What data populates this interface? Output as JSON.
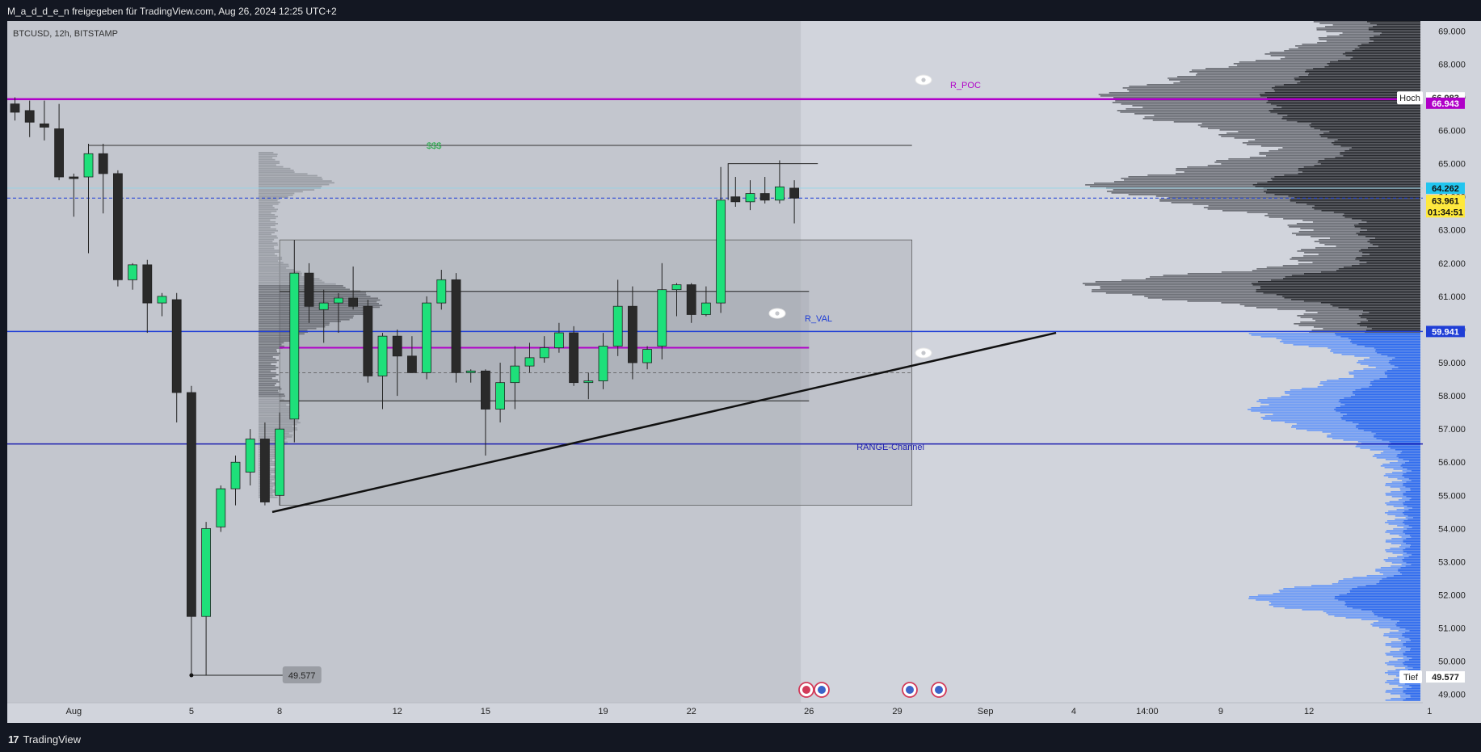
{
  "header": {
    "title": "M_a_d_d_e_n freigegeben für TradingView.com, Aug 26, 2024 12:25 UTC+2"
  },
  "footer": {
    "logo_mark": "17",
    "brand": "TradingView"
  },
  "colors": {
    "up": "#1ee07a",
    "down": "#2a2a2a",
    "poc": "#b000c8",
    "val": "#1f3ed6",
    "cyan": "#22c5ef",
    "yellow": "#ffe93b",
    "vp_upper": "#3a3a3a",
    "vp_lower": "#3a78f5"
  },
  "chart_data": {
    "type": "candlestick",
    "symbol_label": "BTCUSD, 12h, BITSTAMP",
    "ylim": [
      48750,
      69300
    ],
    "y_ticks": [
      "69.000",
      "68.000",
      "67.000",
      "66.000",
      "65.000",
      "64.000",
      "63.000",
      "62.000",
      "61.000",
      "60.000",
      "59.000",
      "58.000",
      "57.000",
      "56.000",
      "55.000",
      "54.000",
      "53.000",
      "52.000",
      "51.000",
      "50.000",
      "49.000"
    ],
    "x_labels": [
      {
        "label": "Aug",
        "idx": 4
      },
      {
        "label": "5",
        "idx": 12
      },
      {
        "label": "8",
        "idx": 18
      },
      {
        "label": "12",
        "idx": 26
      },
      {
        "label": "15",
        "idx": 32
      },
      {
        "label": "19",
        "idx": 40
      },
      {
        "label": "22",
        "idx": 46
      },
      {
        "label": "26",
        "idx": 54
      },
      {
        "label": "29",
        "idx": 60
      },
      {
        "label": "Sep",
        "idx": 66
      },
      {
        "label": "4",
        "idx": 72
      },
      {
        "label": "14:00",
        "idx": 77
      },
      {
        "label": "9",
        "idx": 82
      },
      {
        "label": "12",
        "idx": 88
      },
      {
        "label": "1",
        "idx": 96.2
      }
    ],
    "candles": [
      {
        "o": 66800,
        "h": 67000,
        "l": 66300,
        "c": 66550
      },
      {
        "o": 66600,
        "h": 66900,
        "l": 65800,
        "c": 66250
      },
      {
        "o": 66200,
        "h": 66900,
        "l": 65700,
        "c": 66100
      },
      {
        "o": 66050,
        "h": 66800,
        "l": 64500,
        "c": 64600
      },
      {
        "o": 64600,
        "h": 64700,
        "l": 63400,
        "c": 64550
      },
      {
        "o": 64600,
        "h": 65600,
        "l": 62300,
        "c": 65300
      },
      {
        "o": 65300,
        "h": 65600,
        "l": 63500,
        "c": 64700
      },
      {
        "o": 64700,
        "h": 64800,
        "l": 61300,
        "c": 61500
      },
      {
        "o": 61500,
        "h": 62000,
        "l": 61200,
        "c": 61950
      },
      {
        "o": 61950,
        "h": 62100,
        "l": 59900,
        "c": 60800
      },
      {
        "o": 60800,
        "h": 61100,
        "l": 60400,
        "c": 61000
      },
      {
        "o": 60900,
        "h": 61100,
        "l": 57200,
        "c": 58100
      },
      {
        "o": 58100,
        "h": 58300,
        "l": 49577,
        "c": 51350
      },
      {
        "o": 51350,
        "h": 54200,
        "l": 49577,
        "c": 54000
      },
      {
        "o": 54050,
        "h": 55300,
        "l": 53900,
        "c": 55200
      },
      {
        "o": 55200,
        "h": 56200,
        "l": 54700,
        "c": 56000
      },
      {
        "o": 55700,
        "h": 57000,
        "l": 55300,
        "c": 56700
      },
      {
        "o": 56700,
        "h": 57200,
        "l": 54700,
        "c": 54800
      },
      {
        "o": 55000,
        "h": 57500,
        "l": 54700,
        "c": 57000
      },
      {
        "o": 57300,
        "h": 62700,
        "l": 56600,
        "c": 61700
      },
      {
        "o": 61700,
        "h": 62000,
        "l": 60200,
        "c": 60700
      },
      {
        "o": 60600,
        "h": 61200,
        "l": 59600,
        "c": 60800
      },
      {
        "o": 60800,
        "h": 61100,
        "l": 59900,
        "c": 60950
      },
      {
        "o": 60950,
        "h": 61900,
        "l": 60600,
        "c": 60700
      },
      {
        "o": 60700,
        "h": 60900,
        "l": 58400,
        "c": 58600
      },
      {
        "o": 58600,
        "h": 59900,
        "l": 57600,
        "c": 59800
      },
      {
        "o": 59800,
        "h": 60000,
        "l": 58000,
        "c": 59200
      },
      {
        "o": 59200,
        "h": 59800,
        "l": 58700,
        "c": 58700
      },
      {
        "o": 58700,
        "h": 61000,
        "l": 58500,
        "c": 60800
      },
      {
        "o": 60800,
        "h": 61800,
        "l": 60600,
        "c": 61500
      },
      {
        "o": 61500,
        "h": 61700,
        "l": 58400,
        "c": 58700
      },
      {
        "o": 58700,
        "h": 58800,
        "l": 58400,
        "c": 58750
      },
      {
        "o": 58750,
        "h": 58800,
        "l": 56200,
        "c": 57600
      },
      {
        "o": 57600,
        "h": 59000,
        "l": 57200,
        "c": 58400
      },
      {
        "o": 58400,
        "h": 59500,
        "l": 57600,
        "c": 58900
      },
      {
        "o": 58900,
        "h": 59600,
        "l": 58700,
        "c": 59150
      },
      {
        "o": 59150,
        "h": 59800,
        "l": 59000,
        "c": 59450
      },
      {
        "o": 59450,
        "h": 60200,
        "l": 59300,
        "c": 59900
      },
      {
        "o": 59900,
        "h": 60100,
        "l": 58300,
        "c": 58400
      },
      {
        "o": 58400,
        "h": 58700,
        "l": 57900,
        "c": 58450
      },
      {
        "o": 58450,
        "h": 59900,
        "l": 58200,
        "c": 59500
      },
      {
        "o": 59500,
        "h": 61500,
        "l": 59200,
        "c": 60700
      },
      {
        "o": 60700,
        "h": 61300,
        "l": 58500,
        "c": 59000
      },
      {
        "o": 59000,
        "h": 59500,
        "l": 58800,
        "c": 59400
      },
      {
        "o": 59500,
        "h": 62000,
        "l": 59100,
        "c": 61200
      },
      {
        "o": 61200,
        "h": 61400,
        "l": 60400,
        "c": 61350
      },
      {
        "o": 61350,
        "h": 61400,
        "l": 60200,
        "c": 60450
      },
      {
        "o": 60450,
        "h": 61300,
        "l": 60400,
        "c": 60800
      },
      {
        "o": 60800,
        "h": 64900,
        "l": 60500,
        "c": 63900
      },
      {
        "o": 64000,
        "h": 64600,
        "l": 63700,
        "c": 63850
      },
      {
        "o": 63850,
        "h": 64500,
        "l": 63600,
        "c": 64100
      },
      {
        "o": 64100,
        "h": 64600,
        "l": 63800,
        "c": 63900
      },
      {
        "o": 63900,
        "h": 65100,
        "l": 63800,
        "c": 64300
      },
      {
        "o": 64262,
        "h": 64500,
        "l": 63200,
        "c": 63961
      }
    ],
    "levels": [
      {
        "name": "R_POC",
        "price": 66943,
        "badge": "66.943"
      },
      {
        "name": "R_VAL",
        "price": 59941,
        "badge": "59.941"
      },
      {
        "name": "RANGE-Channel",
        "price": 56550
      }
    ],
    "annotations": {
      "liquidity_label": "$$$",
      "liquidity_price": 65550,
      "low_label": "49.577",
      "high_tag": "Hoch",
      "high_value": "66.983",
      "low_tag": "Tief",
      "low_value": "49.577",
      "last_price": "64.262",
      "close_price": "63.961",
      "countdown": "01:34:51"
    },
    "range_box": {
      "top": 62700,
      "bottom": 54700,
      "start_idx": 18,
      "end_idx": 61
    },
    "inner_range": {
      "top": 61150,
      "bottom": 57850,
      "mid": 59450,
      "dash": 58700,
      "start_idx": 18,
      "end_idx": 54
    },
    "trendline": {
      "from_idx": 17.5,
      "from_price": 54500,
      "to_idx": 70.8,
      "to_price": 59900
    },
    "high_bracket": {
      "price": 65000,
      "start_idx": 48.5,
      "end_idx": 54.6
    }
  }
}
